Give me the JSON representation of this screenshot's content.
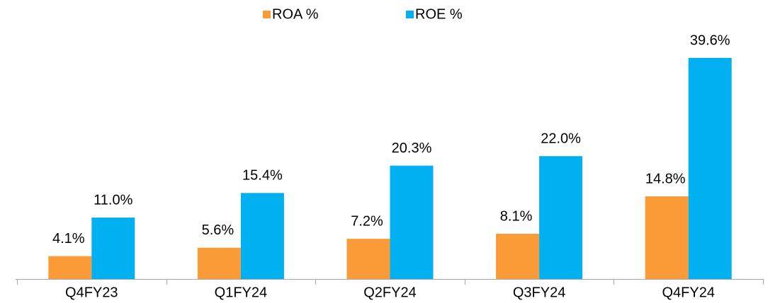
{
  "chart_data": {
    "type": "bar",
    "categories": [
      "Q4FY23",
      "Q1FY24",
      "Q2FY24",
      "Q3FY24",
      "Q4FY24"
    ],
    "series": [
      {
        "name": "ROA %",
        "color": "#fa9b37",
        "values": [
          4.1,
          5.6,
          7.2,
          8.1,
          14.8
        ],
        "value_labels": [
          "4.1%",
          "5.6%",
          "7.2%",
          "8.1%",
          "14.8%"
        ]
      },
      {
        "name": "ROE %",
        "color": "#00b0f0",
        "values": [
          11.0,
          15.4,
          20.3,
          22.0,
          39.6
        ],
        "value_labels": [
          "11.0%",
          "15.4%",
          "20.3%",
          "22.0%",
          "39.6%"
        ]
      }
    ],
    "legend": "top"
  }
}
